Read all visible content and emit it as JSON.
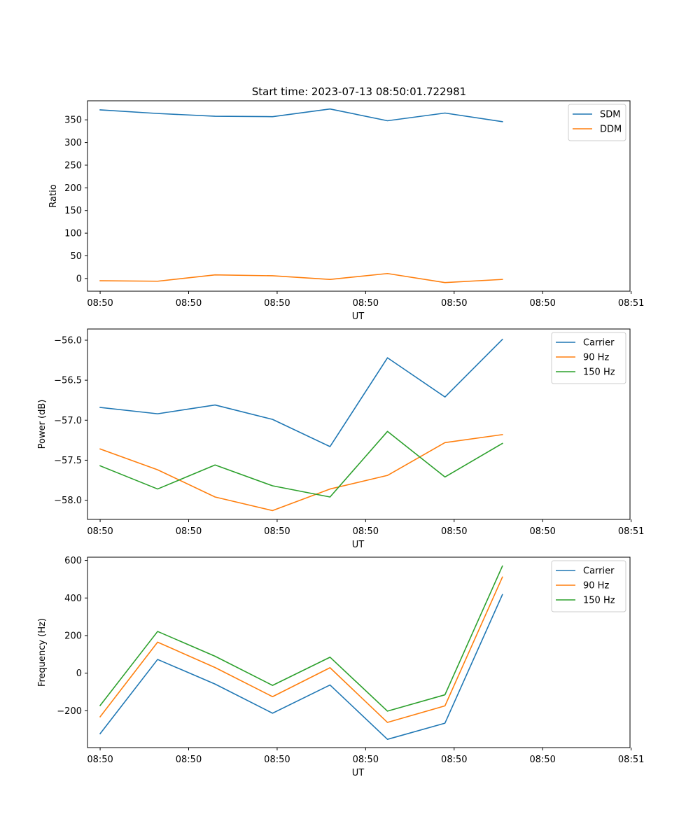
{
  "figure": {
    "title": "Start time: 2023-07-13 08:50:01.722981"
  },
  "colors": {
    "blue": "#1f77b4",
    "orange": "#ff7f0e",
    "green": "#2ca02c"
  },
  "chart_data": [
    {
      "type": "line",
      "title": "Start time: 2023-07-13 08:50:01.722981",
      "xlabel": "UT",
      "ylabel": "Ratio",
      "x": [
        1.0,
        2.0,
        3.0,
        4.0,
        5.0,
        6.0,
        7.0,
        8.0
      ],
      "xlim": [
        0.78,
        10.22
      ],
      "xticks": [
        1.0,
        2.54,
        4.08,
        5.62,
        7.16,
        8.7,
        10.24
      ],
      "xticklabels": [
        "08:50",
        "08:50",
        "08:50",
        "08:50",
        "08:50",
        "08:50",
        "08:51"
      ],
      "ylim": [
        -28,
        392
      ],
      "yticks": [
        0,
        50,
        100,
        150,
        200,
        250,
        300,
        350
      ],
      "yticklabels": [
        "0",
        "50",
        "100",
        "150",
        "200",
        "250",
        "300",
        "350"
      ],
      "legend": "top-right",
      "series": [
        {
          "name": "SDM",
          "color": "blue",
          "values": [
            372,
            364,
            358,
            357,
            374,
            348,
            365,
            346
          ]
        },
        {
          "name": "DDM",
          "color": "orange",
          "values": [
            -5,
            -6,
            8,
            6,
            -2,
            11,
            -9,
            -2
          ]
        }
      ]
    },
    {
      "type": "line",
      "title": "",
      "xlabel": "UT",
      "ylabel": "Power (dB)",
      "x": [
        1.0,
        2.0,
        3.0,
        4.0,
        5.0,
        6.0,
        7.0,
        8.0
      ],
      "xlim": [
        0.78,
        10.22
      ],
      "xticks": [
        1.0,
        2.54,
        4.08,
        5.62,
        7.16,
        8.7,
        10.24
      ],
      "xticklabels": [
        "08:50",
        "08:50",
        "08:50",
        "08:50",
        "08:50",
        "08:50",
        "08:51"
      ],
      "ylim": [
        -58.24,
        -55.86
      ],
      "yticks": [
        -58.0,
        -57.5,
        -57.0,
        -56.5,
        -56.0
      ],
      "yticklabels": [
        "−58.0",
        "−57.5",
        "−57.0",
        "−56.5",
        "−56.0"
      ],
      "legend": "top-right",
      "series": [
        {
          "name": "Carrier",
          "color": "blue",
          "values": [
            -56.84,
            -56.92,
            -56.81,
            -56.99,
            -57.33,
            -56.22,
            -56.71,
            -55.99
          ]
        },
        {
          "name": "90 Hz",
          "color": "orange",
          "values": [
            -57.36,
            -57.62,
            -57.96,
            -58.13,
            -57.86,
            -57.69,
            -57.28,
            -57.18
          ]
        },
        {
          "name": "150 Hz",
          "color": "green",
          "values": [
            -57.57,
            -57.86,
            -57.56,
            -57.82,
            -57.96,
            -57.14,
            -57.71,
            -57.29
          ]
        }
      ]
    },
    {
      "type": "line",
      "title": "",
      "xlabel": "UT",
      "ylabel": "Frequency (Hz)",
      "x": [
        1.0,
        2.0,
        3.0,
        4.0,
        5.0,
        6.0,
        7.0,
        8.0
      ],
      "xlim": [
        0.78,
        10.22
      ],
      "xticks": [
        1.0,
        2.54,
        4.08,
        5.62,
        7.16,
        8.7,
        10.24
      ],
      "xticklabels": [
        "08:50",
        "08:50",
        "08:50",
        "08:50",
        "08:50",
        "08:50",
        "08:51"
      ],
      "ylim": [
        -396,
        617
      ],
      "yticks": [
        -200,
        0,
        200,
        400,
        600
      ],
      "yticklabels": [
        "−200",
        "0",
        "200",
        "400",
        "600"
      ],
      "legend": "top-right",
      "series": [
        {
          "name": "Carrier",
          "color": "blue",
          "values": [
            -322,
            73,
            -58,
            -213,
            -63,
            -352,
            -266,
            418
          ]
        },
        {
          "name": "90 Hz",
          "color": "orange",
          "values": [
            -232,
            165,
            30,
            -125,
            29,
            -262,
            -174,
            511
          ]
        },
        {
          "name": "150 Hz",
          "color": "green",
          "values": [
            -172,
            222,
            90,
            -65,
            85,
            -202,
            -115,
            570
          ]
        }
      ]
    }
  ]
}
